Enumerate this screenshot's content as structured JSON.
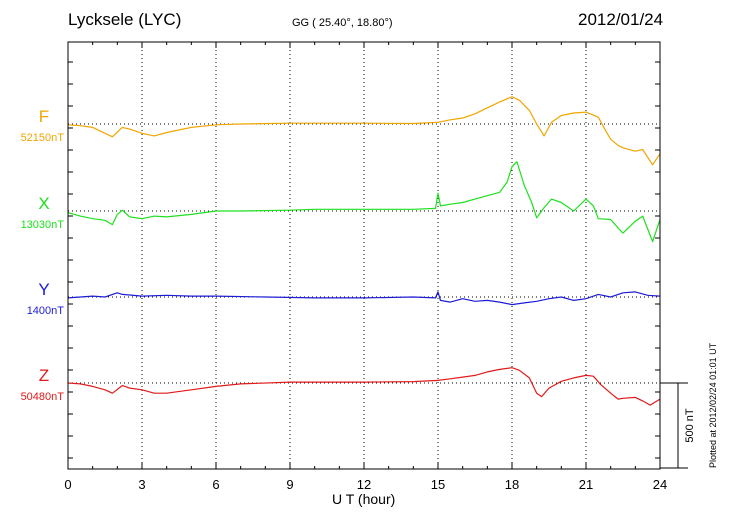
{
  "header": {
    "title": "Lycksele (LYC)",
    "coords": "GG ( 25.40°,  18.80°)",
    "date": "2012/01/24"
  },
  "footer": {
    "plotted": "Plotted at 2012/02/24 01:01 UT"
  },
  "chart_data": {
    "type": "line",
    "title": "Lycksele (LYC)",
    "xlabel": "U T (hour)",
    "xlim": [
      0,
      24
    ],
    "x_ticks": [
      "0",
      "3",
      "6",
      "9",
      "12",
      "15",
      "18",
      "21",
      "24"
    ],
    "grid": true,
    "scale_bar": {
      "label": "500 nT",
      "value_nT": 500
    },
    "series": [
      {
        "name": "F",
        "baseline_label": "52150nT",
        "baseline_nT": 52150,
        "color": "#f0a500",
        "points": [
          [
            0,
            52145
          ],
          [
            0.5,
            52140
          ],
          [
            1,
            52130
          ],
          [
            1.5,
            52095
          ],
          [
            1.8,
            52075
          ],
          [
            2.2,
            52130
          ],
          [
            2.5,
            52120
          ],
          [
            3,
            52095
          ],
          [
            3.5,
            52080
          ],
          [
            4,
            52100
          ],
          [
            5,
            52130
          ],
          [
            6,
            52145
          ],
          [
            7,
            52150
          ],
          [
            9,
            52155
          ],
          [
            12,
            52155
          ],
          [
            14,
            52153
          ],
          [
            15,
            52160
          ],
          [
            15.5,
            52175
          ],
          [
            16,
            52185
          ],
          [
            16.5,
            52210
          ],
          [
            17,
            52245
          ],
          [
            17.5,
            52280
          ],
          [
            18,
            52310
          ],
          [
            18.3,
            52290
          ],
          [
            18.7,
            52230
          ],
          [
            19,
            52150
          ],
          [
            19.3,
            52080
          ],
          [
            19.6,
            52160
          ],
          [
            20,
            52200
          ],
          [
            20.5,
            52215
          ],
          [
            21,
            52220
          ],
          [
            21.5,
            52190
          ],
          [
            21.8,
            52110
          ],
          [
            22,
            52060
          ],
          [
            22.3,
            52025
          ],
          [
            22.5,
            52010
          ],
          [
            23,
            51990
          ],
          [
            23.3,
            52000
          ],
          [
            23.7,
            51910
          ],
          [
            24,
            51975
          ]
        ]
      },
      {
        "name": "X",
        "baseline_label": "13030nT",
        "baseline_nT": 13030,
        "color": "#1ee01e",
        "points": [
          [
            0,
            13020
          ],
          [
            0.5,
            13000
          ],
          [
            1,
            12985
          ],
          [
            1.5,
            12975
          ],
          [
            1.8,
            12950
          ],
          [
            2,
            13010
          ],
          [
            2.2,
            13035
          ],
          [
            2.5,
            12995
          ],
          [
            3,
            12985
          ],
          [
            3.5,
            13000
          ],
          [
            4,
            12995
          ],
          [
            5,
            13010
          ],
          [
            6,
            13030
          ],
          [
            7,
            13030
          ],
          [
            9,
            13035
          ],
          [
            10,
            13040
          ],
          [
            12,
            13040
          ],
          [
            14,
            13040
          ],
          [
            14.9,
            13045
          ],
          [
            15,
            13135
          ],
          [
            15.1,
            13060
          ],
          [
            15.5,
            13070
          ],
          [
            16,
            13080
          ],
          [
            16.5,
            13100
          ],
          [
            17,
            13120
          ],
          [
            17.5,
            13140
          ],
          [
            17.8,
            13200
          ],
          [
            18,
            13290
          ],
          [
            18.2,
            13320
          ],
          [
            18.5,
            13180
          ],
          [
            18.8,
            13080
          ],
          [
            19,
            12990
          ],
          [
            19.3,
            13050
          ],
          [
            19.6,
            13100
          ],
          [
            20,
            13080
          ],
          [
            20.5,
            13030
          ],
          [
            21,
            13100
          ],
          [
            21.3,
            13060
          ],
          [
            21.5,
            12985
          ],
          [
            22,
            12980
          ],
          [
            22.3,
            12930
          ],
          [
            22.5,
            12900
          ],
          [
            23,
            12970
          ],
          [
            23.3,
            13000
          ],
          [
            23.7,
            12850
          ],
          [
            24,
            12980
          ]
        ]
      },
      {
        "name": "Y",
        "baseline_label": "1400nT",
        "baseline_nT": 1400,
        "color": "#1c1cd4",
        "points": [
          [
            0,
            1395
          ],
          [
            0.5,
            1400
          ],
          [
            1,
            1405
          ],
          [
            1.5,
            1400
          ],
          [
            2,
            1425
          ],
          [
            2.2,
            1415
          ],
          [
            2.5,
            1412
          ],
          [
            3,
            1405
          ],
          [
            4,
            1410
          ],
          [
            5,
            1405
          ],
          [
            6,
            1405
          ],
          [
            8,
            1400
          ],
          [
            10,
            1395
          ],
          [
            12,
            1395
          ],
          [
            14,
            1400
          ],
          [
            14.9,
            1395
          ],
          [
            15,
            1430
          ],
          [
            15.1,
            1380
          ],
          [
            15.5,
            1370
          ],
          [
            16,
            1390
          ],
          [
            16.5,
            1375
          ],
          [
            17,
            1380
          ],
          [
            17.5,
            1370
          ],
          [
            18,
            1355
          ],
          [
            18.5,
            1365
          ],
          [
            19,
            1375
          ],
          [
            19.5,
            1390
          ],
          [
            20,
            1400
          ],
          [
            20.5,
            1380
          ],
          [
            21,
            1390
          ],
          [
            21.5,
            1415
          ],
          [
            22,
            1400
          ],
          [
            22.5,
            1425
          ],
          [
            23,
            1430
          ],
          [
            23.5,
            1410
          ],
          [
            24,
            1405
          ]
        ]
      },
      {
        "name": "Z",
        "baseline_label": "50480nT",
        "baseline_nT": 50480,
        "color": "#e01a1a",
        "points": [
          [
            0,
            50480
          ],
          [
            0.5,
            50475
          ],
          [
            1,
            50460
          ],
          [
            1.5,
            50440
          ],
          [
            1.8,
            50420
          ],
          [
            2.2,
            50465
          ],
          [
            2.5,
            50450
          ],
          [
            3,
            50440
          ],
          [
            3.5,
            50420
          ],
          [
            4,
            50420
          ],
          [
            5,
            50440
          ],
          [
            6,
            50460
          ],
          [
            7,
            50475
          ],
          [
            9,
            50485
          ],
          [
            12,
            50485
          ],
          [
            14,
            50488
          ],
          [
            15,
            50495
          ],
          [
            15.5,
            50505
          ],
          [
            16,
            50515
          ],
          [
            16.5,
            50525
          ],
          [
            17,
            50545
          ],
          [
            17.5,
            50560
          ],
          [
            18,
            50570
          ],
          [
            18.3,
            50555
          ],
          [
            18.7,
            50510
          ],
          [
            19,
            50420
          ],
          [
            19.2,
            50400
          ],
          [
            19.5,
            50450
          ],
          [
            20,
            50490
          ],
          [
            20.5,
            50510
          ],
          [
            21,
            50525
          ],
          [
            21.3,
            50520
          ],
          [
            21.6,
            50470
          ],
          [
            22,
            50420
          ],
          [
            22.3,
            50385
          ],
          [
            22.5,
            50390
          ],
          [
            23,
            50395
          ],
          [
            23.3,
            50375
          ],
          [
            23.6,
            50350
          ],
          [
            24,
            50385
          ]
        ]
      }
    ]
  }
}
